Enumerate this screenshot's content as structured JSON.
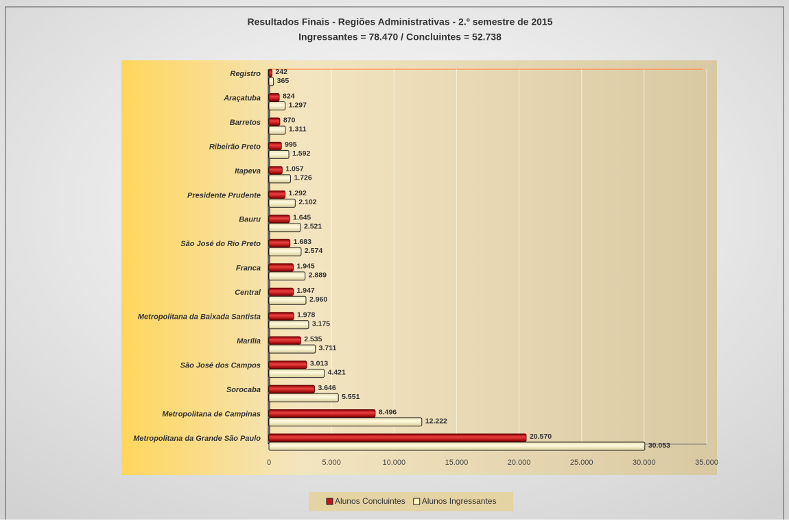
{
  "chart_data": {
    "type": "bar",
    "orientation": "horizontal",
    "title": "Resultados Finais - Regiões Administrativas - 2.º semestre de 2015",
    "subtitle": "Ingressantes = 78.470 / Concluintes = 52.738",
    "categories": [
      "Registro",
      "Araçatuba",
      "Barretos",
      "Ribeirão Preto",
      "Itapeva",
      "Presidente Prudente",
      "Bauru",
      "São José do Rio Preto",
      "Franca",
      "Central",
      "Metropolitana da Baixada Santista",
      "Marília",
      "São José dos Campos",
      "Sorocaba",
      "Metropolitana de Campinas",
      "Metropolitana da Grande São Paulo"
    ],
    "series": [
      {
        "name": "Alunos Concluintes",
        "color": "#c0141a",
        "values": [
          242,
          824,
          870,
          995,
          1057,
          1292,
          1645,
          1683,
          1945,
          1947,
          1978,
          2535,
          3013,
          3646,
          8496,
          20570
        ],
        "value_labels": [
          "242",
          "824",
          "870",
          "995",
          "1.057",
          "1.292",
          "1.645",
          "1.683",
          "1.945",
          "1.947",
          "1.978",
          "2.535",
          "3.013",
          "3.646",
          "8.496",
          "20.570"
        ]
      },
      {
        "name": "Alunos Ingressantes",
        "color": "#fdf6c3",
        "values": [
          365,
          1297,
          1311,
          1592,
          1726,
          2102,
          2521,
          2574,
          2889,
          2960,
          3175,
          3711,
          4421,
          5551,
          12222,
          30053
        ],
        "value_labels": [
          "365",
          "1.297",
          "1.311",
          "1.592",
          "1.726",
          "2.102",
          "2.521",
          "2.574",
          "2.889",
          "2.960",
          "3.175",
          "3.711",
          "4.421",
          "5.551",
          "12.222",
          "30.053"
        ]
      }
    ],
    "xlim": [
      0,
      35000
    ],
    "xticks": [
      0,
      {
        "value": 5000,
        "label": "5.000"
      },
      {
        "value": 10000,
        "label": "10.000"
      },
      {
        "value": 15000,
        "label": "15.000"
      },
      {
        "value": 20000,
        "label": "20.000"
      },
      {
        "value": 25000,
        "label": "25.000"
      },
      {
        "value": 30000,
        "label": "30.000"
      },
      {
        "value": 35000,
        "label": "35.000"
      }
    ],
    "grid": true,
    "legend": "bottom"
  }
}
